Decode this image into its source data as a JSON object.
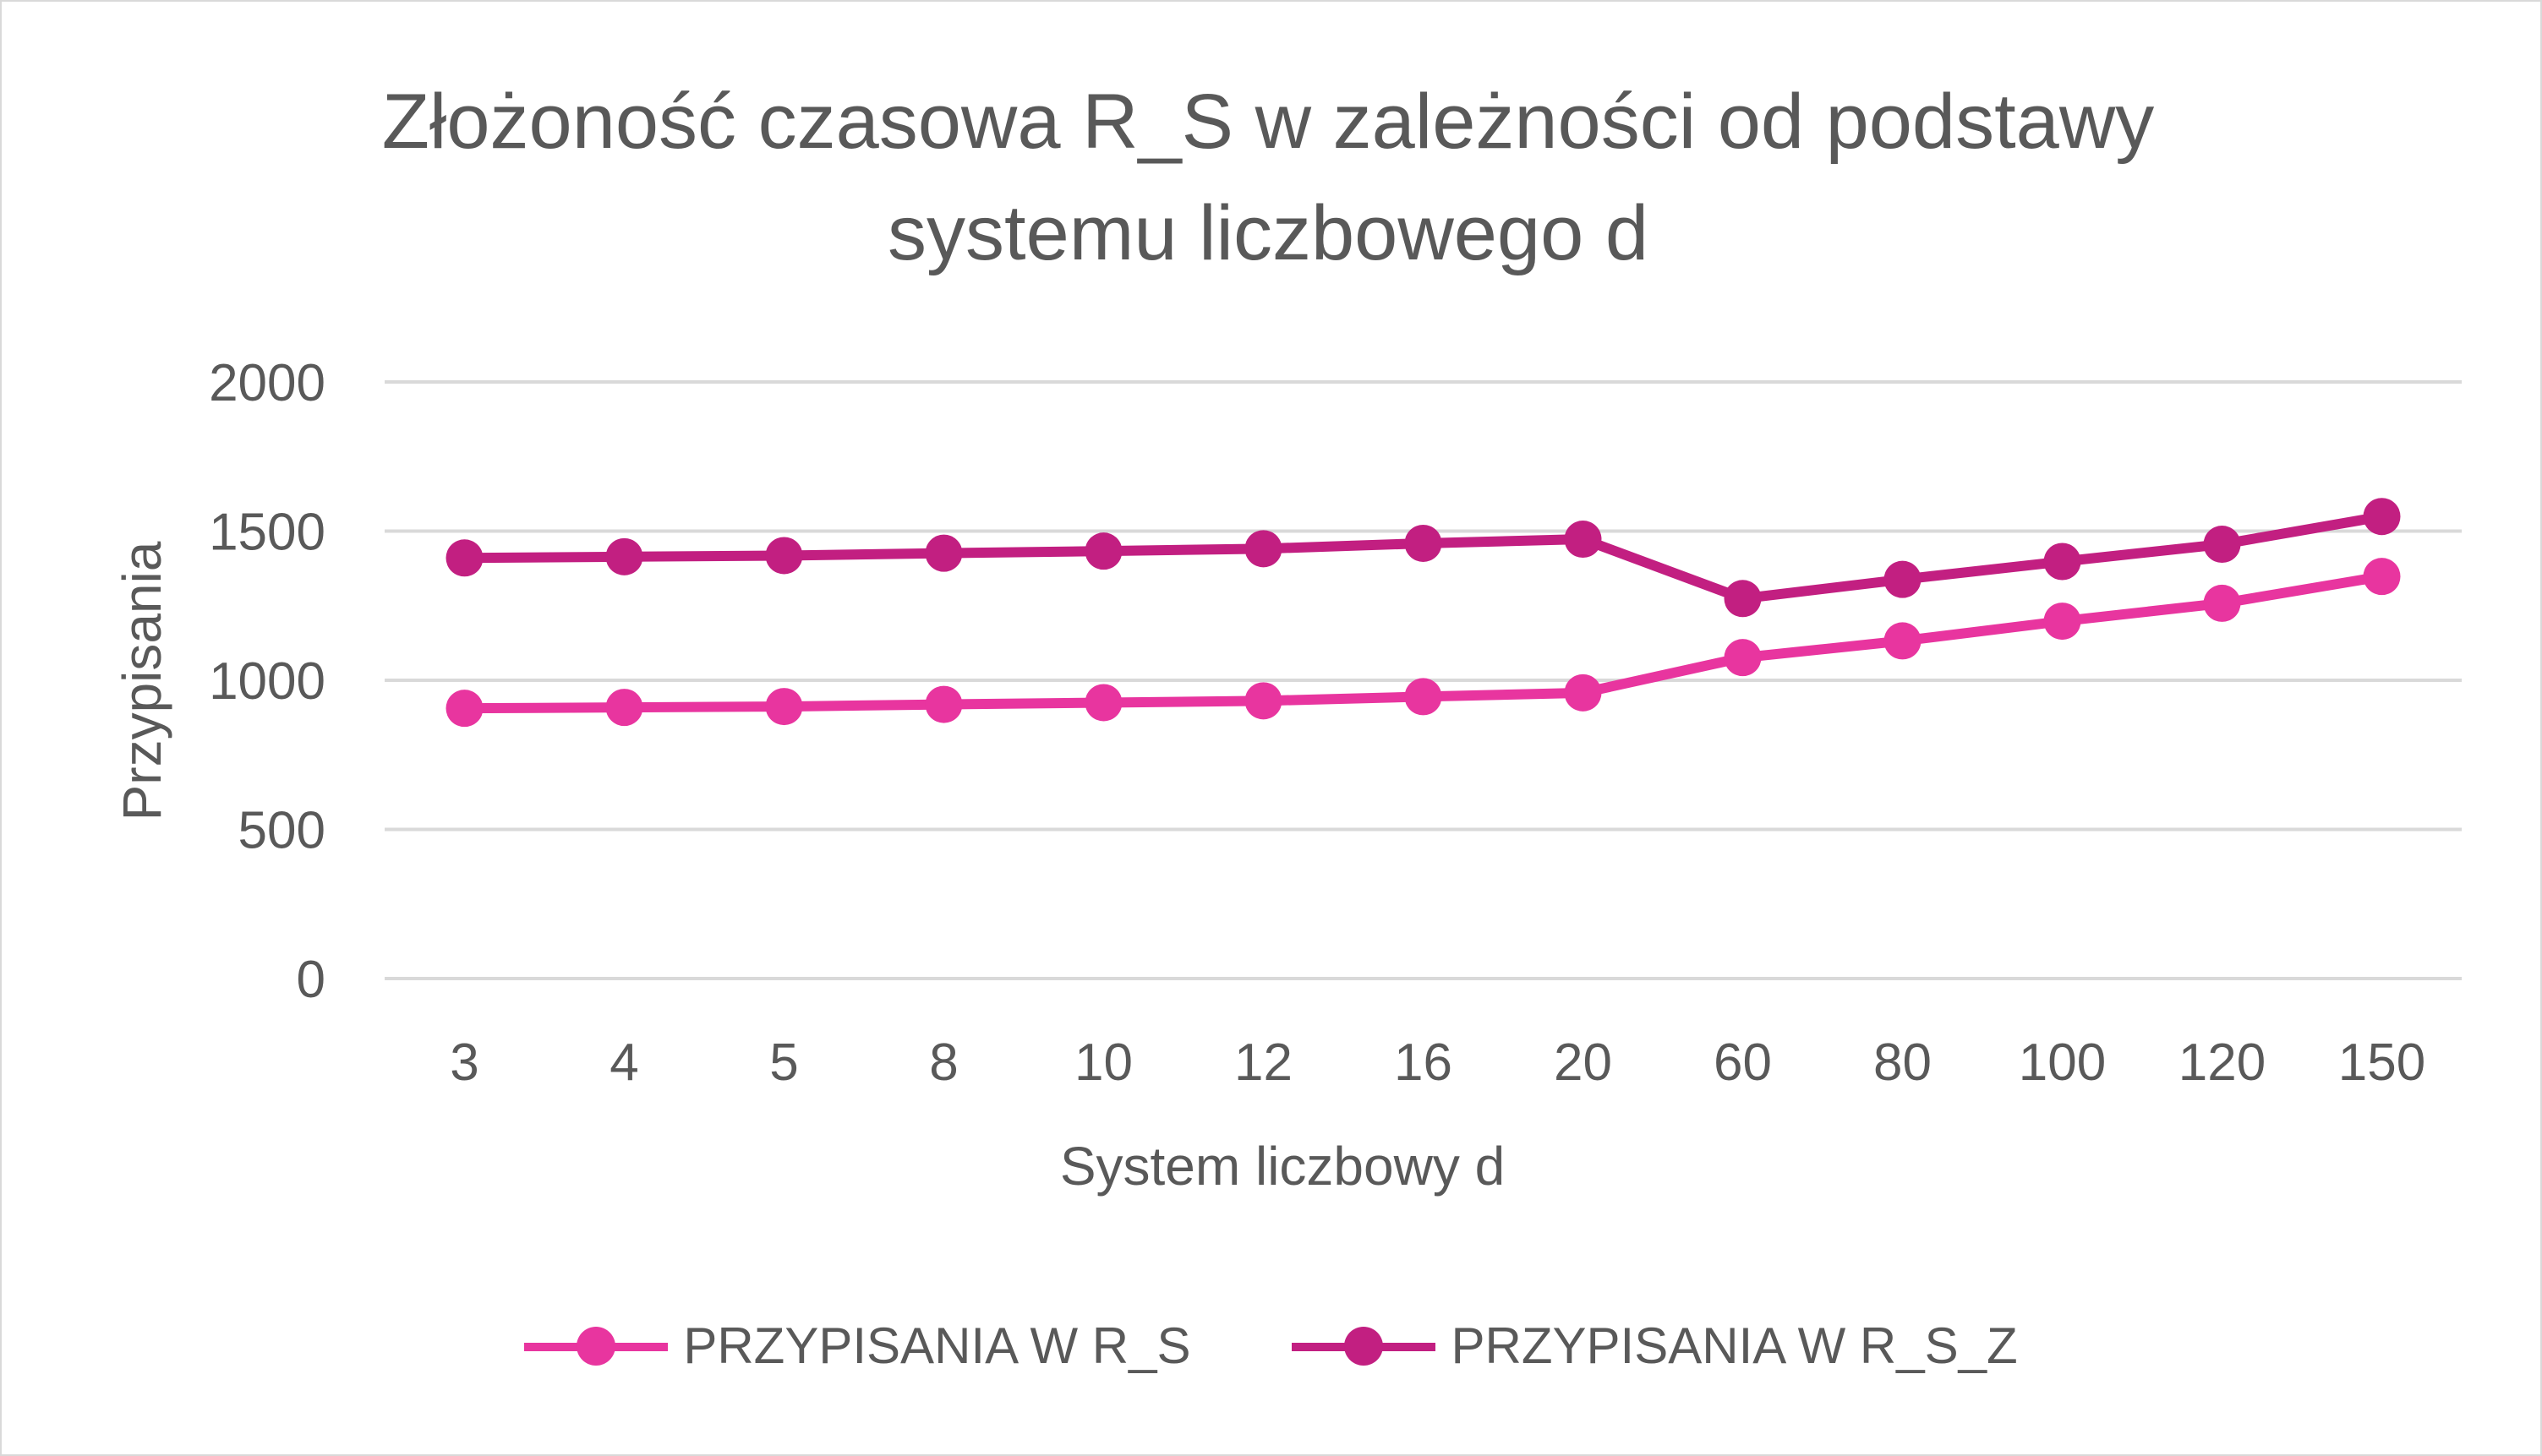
{
  "chart_data": {
    "type": "line",
    "title": "Złożoność czasowa R_S w zależności od podstawy systemu liczbowego d",
    "xlabel": "System liczbowy d",
    "ylabel": "Przypisania",
    "categories": [
      "3",
      "4",
      "5",
      "8",
      "10",
      "12",
      "16",
      "20",
      "60",
      "80",
      "100",
      "120",
      "150"
    ],
    "ylim": [
      0,
      2000
    ],
    "yticks": [
      0,
      500,
      1000,
      1500,
      2000
    ],
    "grid": true,
    "legend_position": "bottom",
    "series": [
      {
        "name": "PRZYPISANIA W R_S",
        "color": "#e8359f",
        "values": [
          906,
          909,
          912,
          919,
          925,
          931,
          945,
          958,
          1076,
          1132,
          1198,
          1258,
          1348
        ]
      },
      {
        "name": "PRZYPISANIA W R_S_Z",
        "color": "#c21f81",
        "values": [
          1410,
          1414,
          1418,
          1426,
          1433,
          1441,
          1459,
          1473,
          1274,
          1338,
          1398,
          1456,
          1549
        ]
      }
    ]
  }
}
